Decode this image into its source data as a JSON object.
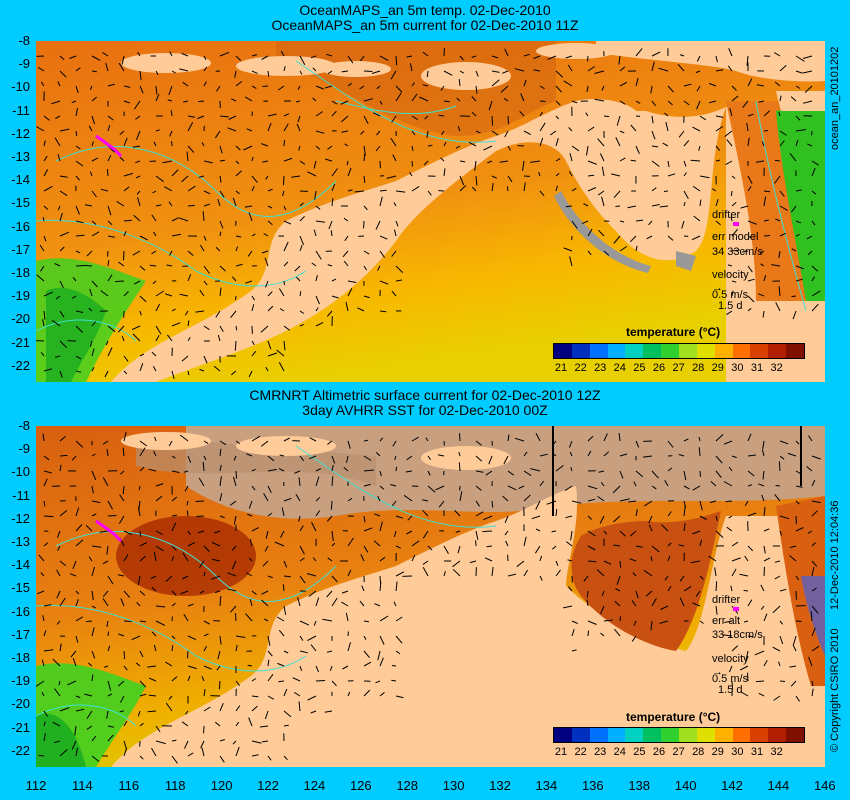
{
  "top_panel": {
    "title_line1": "OceanMAPS_an 5m temp. 02-Dec-2010",
    "title_line2": "OceanMAPS_an 5m current for 02-Dec-2010 11Z",
    "side_label": "ocean_an_20101202",
    "legend": {
      "drifter": "drifter",
      "err": "err model",
      "err_value": "34 33cm/s",
      "velocity": "velocity",
      "scale": "0.5 m/s",
      "days": "1.5 d"
    }
  },
  "bottom_panel": {
    "title_line1": "CMRNRT Altimetric surface current for 02-Dec-2010 12Z",
    "title_line2": "3day AVHRR SST for 02-Dec-2010 00Z",
    "side_label": "12-Dec-2010 12:04:36",
    "copyright": "© Copyright CSIRO 2010",
    "legend": {
      "drifter": "drifter",
      "err": "err alt",
      "err_value": "33 18cm/s",
      "velocity": "velocity",
      "scale": "0.5 m/s",
      "days": "1.5 d"
    }
  },
  "colorbar": {
    "title": "temperature (°C)",
    "labels": [
      "21",
      "22",
      "23",
      "24",
      "25",
      "26",
      "27",
      "28",
      "29",
      "30",
      "31",
      "32"
    ],
    "colors": [
      "#000080",
      "#0030c0",
      "#0070ff",
      "#00b0ff",
      "#00d0c0",
      "#00c060",
      "#30d030",
      "#a0e020",
      "#e0e000",
      "#ffb000",
      "#ff7000",
      "#d84000",
      "#b02000",
      "#801000"
    ]
  },
  "axes": {
    "lat_labels": [
      "-8",
      "-9",
      "-10",
      "-11",
      "-12",
      "-13",
      "-14",
      "-15",
      "-16",
      "-17",
      "-18",
      "-19",
      "-20",
      "-21",
      "-22"
    ],
    "lon_labels": [
      "112",
      "114",
      "116",
      "118",
      "120",
      "122",
      "124",
      "126",
      "128",
      "130",
      "132",
      "134",
      "136",
      "138",
      "140",
      "142",
      "144",
      "146"
    ]
  },
  "colors": {
    "land": "#ffcc99",
    "ocean": "#e07818",
    "background": "#00ccff",
    "drifter": "#ff00ff",
    "bathymetry": "#40e0d0"
  }
}
